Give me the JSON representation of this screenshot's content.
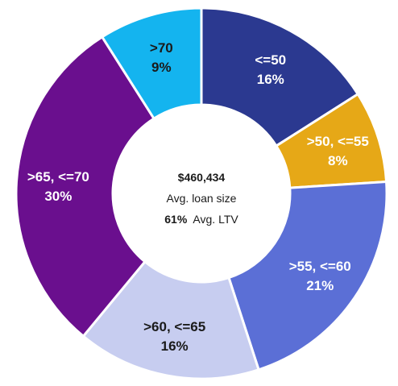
{
  "chart_data": {
    "type": "pie",
    "donut": true,
    "categories": [
      "<=50",
      ">50, <=55",
      ">55, <=60",
      ">60, <=65",
      ">65, <=70",
      ">70"
    ],
    "values": [
      16,
      8,
      21,
      16,
      30,
      9
    ],
    "value_labels": [
      "16%",
      "8%",
      "21%",
      "16%",
      "30%",
      "9%"
    ],
    "colors": [
      "#2b3990",
      "#e6a817",
      "#5b6fd6",
      "#c7cdf0",
      "#6a0f8e",
      "#14b4ef"
    ],
    "label_colors": [
      "#ffffff",
      "#ffffff",
      "#ffffff",
      "#1a1a1a",
      "#ffffff",
      "#1a1a1a"
    ],
    "legend": "none"
  },
  "center": {
    "amount": "$460,434",
    "amount_label": "Avg. loan size",
    "ltv_value": "61%",
    "ltv_label": "Avg. LTV"
  }
}
